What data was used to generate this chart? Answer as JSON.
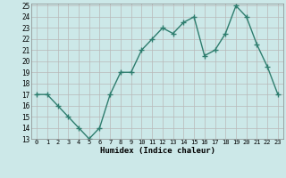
{
  "x": [
    0,
    1,
    2,
    3,
    4,
    5,
    6,
    7,
    8,
    9,
    10,
    11,
    12,
    13,
    14,
    15,
    16,
    17,
    18,
    19,
    20,
    21,
    22,
    23
  ],
  "y": [
    17,
    17,
    16,
    15,
    14,
    13,
    14,
    17,
    19,
    19,
    21,
    22,
    23,
    22.5,
    23.5,
    24,
    20.5,
    21,
    22.5,
    25,
    24,
    21.5,
    19.5,
    17
  ],
  "line_color": "#2e7d6e",
  "marker": "+",
  "marker_size": 4,
  "bg_color": "#cce8e8",
  "grid_color_major": "#b8b8b8",
  "grid_color_minor": "#d8d8d8",
  "xlabel": "Humidex (Indice chaleur)",
  "xlim": [
    -0.5,
    23.5
  ],
  "ylim": [
    13,
    25.2
  ],
  "yticks": [
    13,
    14,
    15,
    16,
    17,
    18,
    19,
    20,
    21,
    22,
    23,
    24,
    25
  ],
  "xticks": [
    0,
    1,
    2,
    3,
    4,
    5,
    6,
    7,
    8,
    9,
    10,
    11,
    12,
    13,
    14,
    15,
    16,
    17,
    18,
    19,
    20,
    21,
    22,
    23
  ]
}
